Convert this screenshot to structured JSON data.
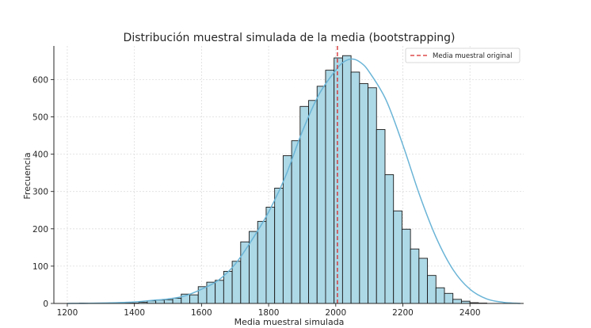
{
  "chart_data": {
    "type": "bar",
    "title": "Distribución muestral simulada de la media (bootstrapping)",
    "xlabel": "Media muestral simulada",
    "ylabel": "Frecuencia",
    "xlim": [
      1160,
      2560
    ],
    "ylim": [
      0,
      690
    ],
    "xticks": [
      1200,
      1400,
      1600,
      1800,
      2000,
      2200,
      2400
    ],
    "yticks": [
      0,
      100,
      200,
      300,
      400,
      500,
      600
    ],
    "grid": true,
    "legend_position": "top-right",
    "bar_color": "#add8e6",
    "kde_color": "#6ab4d6",
    "mean_line_color": "#d62728",
    "bin_start": 1236,
    "bin_width": 25.3,
    "counts": [
      1,
      0,
      0,
      0,
      0,
      1,
      1,
      3,
      7,
      9,
      10,
      14,
      25,
      23,
      45,
      57,
      62,
      86,
      113,
      165,
      193,
      220,
      258,
      309,
      396,
      436,
      528,
      544,
      582,
      625,
      658,
      664,
      620,
      589,
      578,
      466,
      345,
      248,
      199,
      146,
      121,
      75,
      42,
      27,
      11,
      6,
      2,
      1
    ],
    "kde_x": [
      1200,
      1300,
      1400,
      1450,
      1500,
      1550,
      1600,
      1650,
      1700,
      1750,
      1800,
      1850,
      1900,
      1950,
      2000,
      2025,
      2050,
      2075,
      2100,
      2150,
      2200,
      2250,
      2300,
      2350,
      2400,
      2450,
      2500,
      2550
    ],
    "kde_y": [
      0,
      1,
      4,
      8,
      12,
      20,
      38,
      62,
      105,
      170,
      245,
      340,
      460,
      560,
      625,
      648,
      655,
      645,
      620,
      545,
      425,
      290,
      175,
      90,
      38,
      12,
      3,
      0
    ],
    "mean_value": 2005,
    "legend": [
      "Media muestral original"
    ]
  }
}
